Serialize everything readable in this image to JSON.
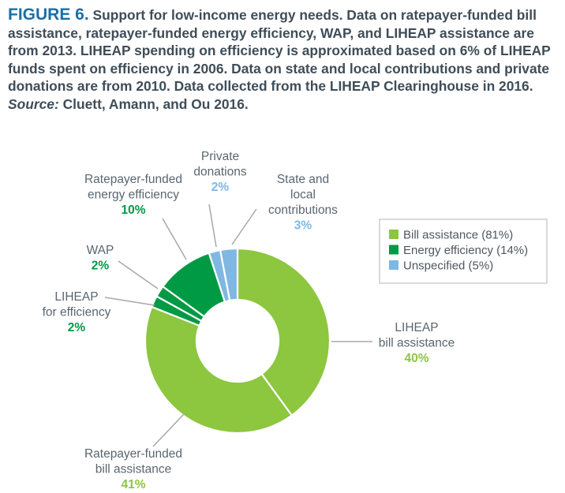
{
  "caption": {
    "figure_label": "FIGURE 6.",
    "text": "Support for low-income energy needs. Data on ratepayer-funded bill assistance, ratepayer-funded energy efficiency, WAP, and LIHEAP assistance are from 2013. LIHEAP spending on efficiency is approximated based on 6% of LIHEAP funds spent on efficiency in 2006. Data on state and local contributions and private donations are from 2010. Data collected from the LIHEAP Clearinghouse in 2016.",
    "source_label": "Source:",
    "source_text": "Cluett, Amann, and Ou 2016."
  },
  "colors": {
    "bill": "#8dc63f",
    "efficiency": "#009a44",
    "unspecified": "#7fb8e2",
    "leader": "#a8a8a8"
  },
  "chart_data": {
    "type": "pie",
    "style": "donut",
    "slices": [
      {
        "name": "LIHEAP bill assistance",
        "lines": [
          "LIHEAP",
          "bill assistance"
        ],
        "value": 40,
        "label": "40%",
        "category": "bill"
      },
      {
        "name": "Ratepayer-funded bill assistance",
        "lines": [
          "Ratepayer-funded",
          "bill assistance"
        ],
        "value": 41,
        "label": "41%",
        "category": "bill"
      },
      {
        "name": "LIHEAP for efficiency",
        "lines": [
          "LIHEAP",
          "for efficiency"
        ],
        "value": 2,
        "label": "2%",
        "category": "efficiency"
      },
      {
        "name": "WAP",
        "lines": [
          "WAP"
        ],
        "value": 2,
        "label": "2%",
        "category": "efficiency"
      },
      {
        "name": "Ratepayer-funded energy efficiency",
        "lines": [
          "Ratepayer-funded",
          "energy efficiency"
        ],
        "value": 10,
        "label": "10%",
        "category": "efficiency"
      },
      {
        "name": "Private donations",
        "lines": [
          "Private",
          "donations"
        ],
        "value": 2,
        "label": "2%",
        "category": "unspecified"
      },
      {
        "name": "State and local contributions",
        "lines": [
          "State and",
          "local",
          "contributions"
        ],
        "value": 3,
        "label": "3%",
        "category": "unspecified"
      }
    ],
    "legend": [
      {
        "label": "Bill assistance (81%)",
        "category": "bill"
      },
      {
        "label": "Energy efficiency (14%)",
        "category": "efficiency"
      },
      {
        "label": "Unspecified (5%)",
        "category": "unspecified"
      }
    ],
    "legend_position": "right"
  }
}
